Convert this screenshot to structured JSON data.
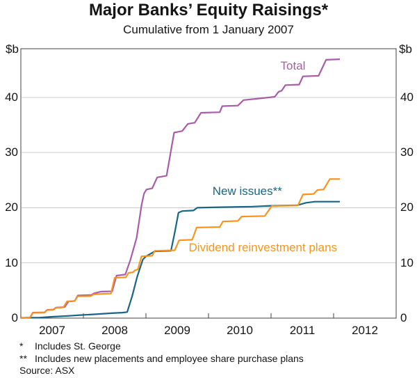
{
  "chart_data": {
    "type": "line",
    "title": "Major Banks’ Equity Raisings*",
    "subtitle": "Cumulative from 1 January 2007",
    "unit_label": "$b",
    "xlim": [
      2007,
      2013
    ],
    "ylim": [
      0,
      48.8
    ],
    "yticks": [
      0,
      10,
      20,
      30,
      40
    ],
    "x_year_labels": [
      "2007",
      "2008",
      "2009",
      "2010",
      "2011",
      "2012"
    ],
    "grid": "horizontal-gridlines",
    "legend": "inline-series-labels",
    "colors": {
      "grid": "#CBCBCB",
      "frame": "#404040",
      "text": "#141414"
    },
    "series": [
      {
        "name": "total",
        "label": "Total",
        "color": "#A95CA7",
        "label_at": [
          2011.35,
          45.6
        ],
        "points": [
          [
            2007.0,
            0
          ],
          [
            2007.15,
            0.15
          ],
          [
            2007.19,
            1.0
          ],
          [
            2007.38,
            1.05
          ],
          [
            2007.42,
            1.5
          ],
          [
            2007.52,
            1.55
          ],
          [
            2007.56,
            1.9
          ],
          [
            2007.7,
            2.0
          ],
          [
            2007.76,
            3.0
          ],
          [
            2007.86,
            3.1
          ],
          [
            2007.91,
            4.1
          ],
          [
            2008.13,
            4.2
          ],
          [
            2008.17,
            4.5
          ],
          [
            2008.28,
            4.8
          ],
          [
            2008.46,
            4.85
          ],
          [
            2008.53,
            7.7
          ],
          [
            2008.67,
            7.9
          ],
          [
            2008.75,
            10.5
          ],
          [
            2008.85,
            14.5
          ],
          [
            2008.93,
            20.5
          ],
          [
            2008.97,
            22.6
          ],
          [
            2009.01,
            23.3
          ],
          [
            2009.1,
            23.5
          ],
          [
            2009.18,
            25.5
          ],
          [
            2009.33,
            25.8
          ],
          [
            2009.45,
            33.6
          ],
          [
            2009.58,
            33.9
          ],
          [
            2009.67,
            35.2
          ],
          [
            2009.78,
            35.4
          ],
          [
            2009.88,
            37.2
          ],
          [
            2010.18,
            37.3
          ],
          [
            2010.22,
            38.4
          ],
          [
            2010.47,
            38.5
          ],
          [
            2010.56,
            39.5
          ],
          [
            2010.9,
            39.9
          ],
          [
            2011.06,
            40.1
          ],
          [
            2011.12,
            41.0
          ],
          [
            2011.17,
            41.2
          ],
          [
            2011.23,
            42.2
          ],
          [
            2011.45,
            42.3
          ],
          [
            2011.51,
            43.8
          ],
          [
            2011.76,
            43.9
          ],
          [
            2011.88,
            46.8
          ],
          [
            2012.1,
            46.9
          ]
        ]
      },
      {
        "name": "new-issues",
        "label": "New issues**",
        "color": "#176587",
        "label_at": [
          2010.62,
          22.9
        ],
        "points": [
          [
            2007.0,
            0.05
          ],
          [
            2007.3,
            0.1
          ],
          [
            2007.5,
            0.25
          ],
          [
            2007.75,
            0.4
          ],
          [
            2007.95,
            0.55
          ],
          [
            2008.2,
            0.7
          ],
          [
            2008.45,
            0.9
          ],
          [
            2008.62,
            1.0
          ],
          [
            2008.7,
            1.1
          ],
          [
            2008.78,
            4.0
          ],
          [
            2008.86,
            7.5
          ],
          [
            2008.95,
            10.6
          ],
          [
            2009.0,
            11.2
          ],
          [
            2009.08,
            11.7
          ],
          [
            2009.14,
            12.1
          ],
          [
            2009.4,
            12.2
          ],
          [
            2009.46,
            15.5
          ],
          [
            2009.52,
            19.1
          ],
          [
            2009.58,
            19.4
          ],
          [
            2009.76,
            19.5
          ],
          [
            2009.82,
            20.0
          ],
          [
            2010.2,
            20.1
          ],
          [
            2010.7,
            20.2
          ],
          [
            2011.0,
            20.35
          ],
          [
            2011.42,
            20.45
          ],
          [
            2011.56,
            20.9
          ],
          [
            2011.7,
            21.1
          ],
          [
            2012.1,
            21.1
          ]
        ]
      },
      {
        "name": "dividend-reinvestment-plans",
        "label": "Dividend reinvestment plans",
        "color": "#F7941D",
        "label_at": [
          2010.87,
          12.7
        ],
        "points": [
          [
            2007.0,
            0
          ],
          [
            2007.15,
            0.15
          ],
          [
            2007.19,
            0.95
          ],
          [
            2007.38,
            1.0
          ],
          [
            2007.42,
            1.45
          ],
          [
            2007.52,
            1.5
          ],
          [
            2007.56,
            1.85
          ],
          [
            2007.68,
            1.95
          ],
          [
            2007.74,
            3.05
          ],
          [
            2007.86,
            3.1
          ],
          [
            2007.91,
            3.95
          ],
          [
            2008.12,
            4.0
          ],
          [
            2008.16,
            4.3
          ],
          [
            2008.3,
            4.4
          ],
          [
            2008.44,
            4.45
          ],
          [
            2008.5,
            7.3
          ],
          [
            2008.68,
            7.4
          ],
          [
            2008.72,
            8.2
          ],
          [
            2008.79,
            8.3
          ],
          [
            2008.83,
            8.7
          ],
          [
            2008.87,
            8.8
          ],
          [
            2008.93,
            11.2
          ],
          [
            2009.1,
            11.3
          ],
          [
            2009.14,
            12.2
          ],
          [
            2009.46,
            12.3
          ],
          [
            2009.53,
            14.1
          ],
          [
            2009.74,
            14.2
          ],
          [
            2009.81,
            16.4
          ],
          [
            2010.18,
            16.5
          ],
          [
            2010.23,
            17.5
          ],
          [
            2010.47,
            17.6
          ],
          [
            2010.53,
            18.4
          ],
          [
            2010.9,
            18.5
          ],
          [
            2011.01,
            20.3
          ],
          [
            2011.43,
            20.4
          ],
          [
            2011.51,
            22.4
          ],
          [
            2011.68,
            22.5
          ],
          [
            2011.74,
            23.2
          ],
          [
            2011.84,
            23.3
          ],
          [
            2011.94,
            25.2
          ],
          [
            2012.1,
            25.2
          ]
        ]
      }
    ]
  },
  "footer": {
    "notes": [
      {
        "marker": "*",
        "text": "Includes St. George"
      },
      {
        "marker": "**",
        "text": "Includes new placements and employee share purchase plans"
      }
    ],
    "source": "Source: ASX"
  }
}
